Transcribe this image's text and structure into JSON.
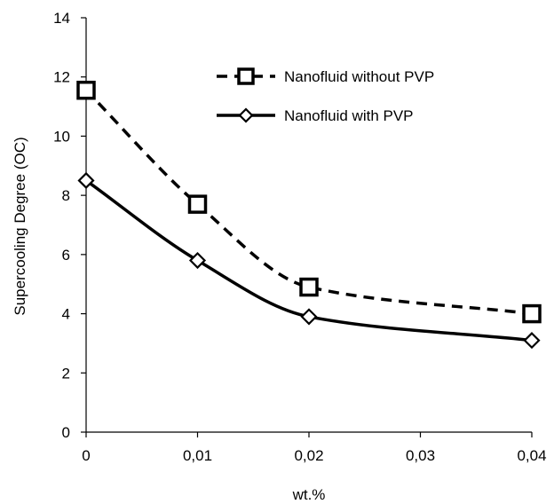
{
  "chart_data": {
    "type": "line",
    "xlabel": "wt.%",
    "ylabel": "Supercooling Degree (OC)",
    "xlim": [
      0,
      0.04
    ],
    "ylim": [
      0,
      14
    ],
    "x_ticks": [
      "0",
      "0,01",
      "0,02",
      "0,03",
      "0,04"
    ],
    "y_ticks": [
      "0",
      "2",
      "4",
      "6",
      "8",
      "10",
      "12",
      "14"
    ],
    "grid": false,
    "legend_position": "top-right",
    "x": [
      0,
      0.01,
      0.02,
      0.04
    ],
    "series": [
      {
        "name": "Nanofluid without PVP",
        "values": [
          11.55,
          7.7,
          4.9,
          4.0
        ],
        "line_style": "dashed",
        "marker": "square",
        "color": "#000000"
      },
      {
        "name": "Nanofluid with PVP",
        "values": [
          8.5,
          5.8,
          3.9,
          3.1
        ],
        "line_style": "solid",
        "marker": "diamond",
        "color": "#000000"
      }
    ]
  }
}
